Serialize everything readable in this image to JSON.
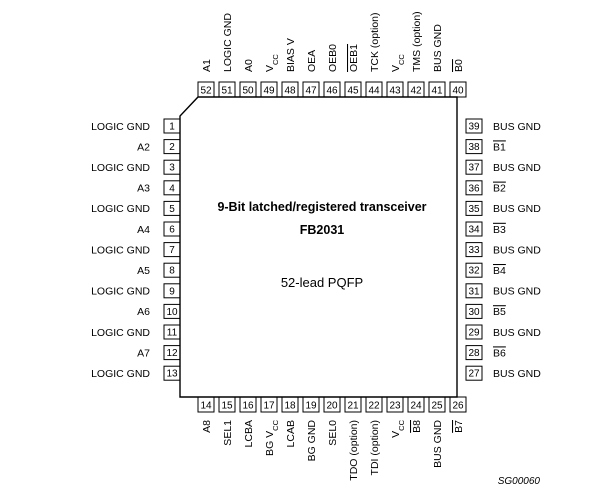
{
  "chip": {
    "title": "9-Bit latched/registered transceiver",
    "part": "FB2031",
    "package": "52-lead PQFP"
  },
  "figure_code": "SG00060",
  "pins_left": [
    {
      "num": "1",
      "label": "LOGIC GND"
    },
    {
      "num": "2",
      "label": "A2"
    },
    {
      "num": "3",
      "label": "LOGIC GND"
    },
    {
      "num": "4",
      "label": "A3"
    },
    {
      "num": "5",
      "label": "LOGIC GND"
    },
    {
      "num": "6",
      "label": "A4"
    },
    {
      "num": "7",
      "label": "LOGIC GND"
    },
    {
      "num": "8",
      "label": "A5"
    },
    {
      "num": "9",
      "label": "LOGIC GND"
    },
    {
      "num": "10",
      "label": "A6"
    },
    {
      "num": "11",
      "label": "LOGIC GND"
    },
    {
      "num": "12",
      "label": "A7"
    },
    {
      "num": "13",
      "label": "LOGIC GND"
    }
  ],
  "pins_right": [
    {
      "num": "39",
      "label": "BUS GND"
    },
    {
      "num": "38",
      "label": "B1",
      "overline": true
    },
    {
      "num": "37",
      "label": "BUS GND"
    },
    {
      "num": "36",
      "label": "B2",
      "overline": true
    },
    {
      "num": "35",
      "label": "BUS GND"
    },
    {
      "num": "34",
      "label": "B3",
      "overline": true
    },
    {
      "num": "33",
      "label": "BUS GND"
    },
    {
      "num": "32",
      "label": "B4",
      "overline": true
    },
    {
      "num": "31",
      "label": "BUS GND"
    },
    {
      "num": "30",
      "label": "B5",
      "overline": true
    },
    {
      "num": "29",
      "label": "BUS GND"
    },
    {
      "num": "28",
      "label": "B6",
      "overline": true
    },
    {
      "num": "27",
      "label": "BUS GND"
    }
  ],
  "pins_top": [
    {
      "num": "52",
      "label": "A1"
    },
    {
      "num": "51",
      "label": "LOGIC GND"
    },
    {
      "num": "50",
      "label": "A0"
    },
    {
      "num": "49",
      "label": "V",
      "sub": "CC"
    },
    {
      "num": "48",
      "label": "BIAS V"
    },
    {
      "num": "47",
      "label": "OEA"
    },
    {
      "num": "46",
      "label": "OEB0"
    },
    {
      "num": "45",
      "label": "OEB1",
      "overline": true
    },
    {
      "num": "44",
      "label": "TCK (option)"
    },
    {
      "num": "43",
      "label": "V",
      "sub": "CC"
    },
    {
      "num": "42",
      "label": "TMS (option)"
    },
    {
      "num": "41",
      "label": "BUS GND"
    },
    {
      "num": "40",
      "label": "B0",
      "overline": true
    }
  ],
  "pins_bottom": [
    {
      "num": "14",
      "label": "A8"
    },
    {
      "num": "15",
      "label": "SEL1"
    },
    {
      "num": "16",
      "label": "LCBA"
    },
    {
      "num": "17",
      "label": "BG V",
      "sub": "CC"
    },
    {
      "num": "18",
      "label": "LCAB"
    },
    {
      "num": "19",
      "label": "BG GND"
    },
    {
      "num": "20",
      "label": "SEL0"
    },
    {
      "num": "21",
      "label": "TDO (option)"
    },
    {
      "num": "22",
      "label": "TDI (option)"
    },
    {
      "num": "23",
      "label": "V",
      "sub": "CC"
    },
    {
      "num": "24",
      "label": "B8",
      "overline": true
    },
    {
      "num": "25",
      "label": "BUS GND"
    },
    {
      "num": "26",
      "label": "B7",
      "overline": true
    }
  ]
}
